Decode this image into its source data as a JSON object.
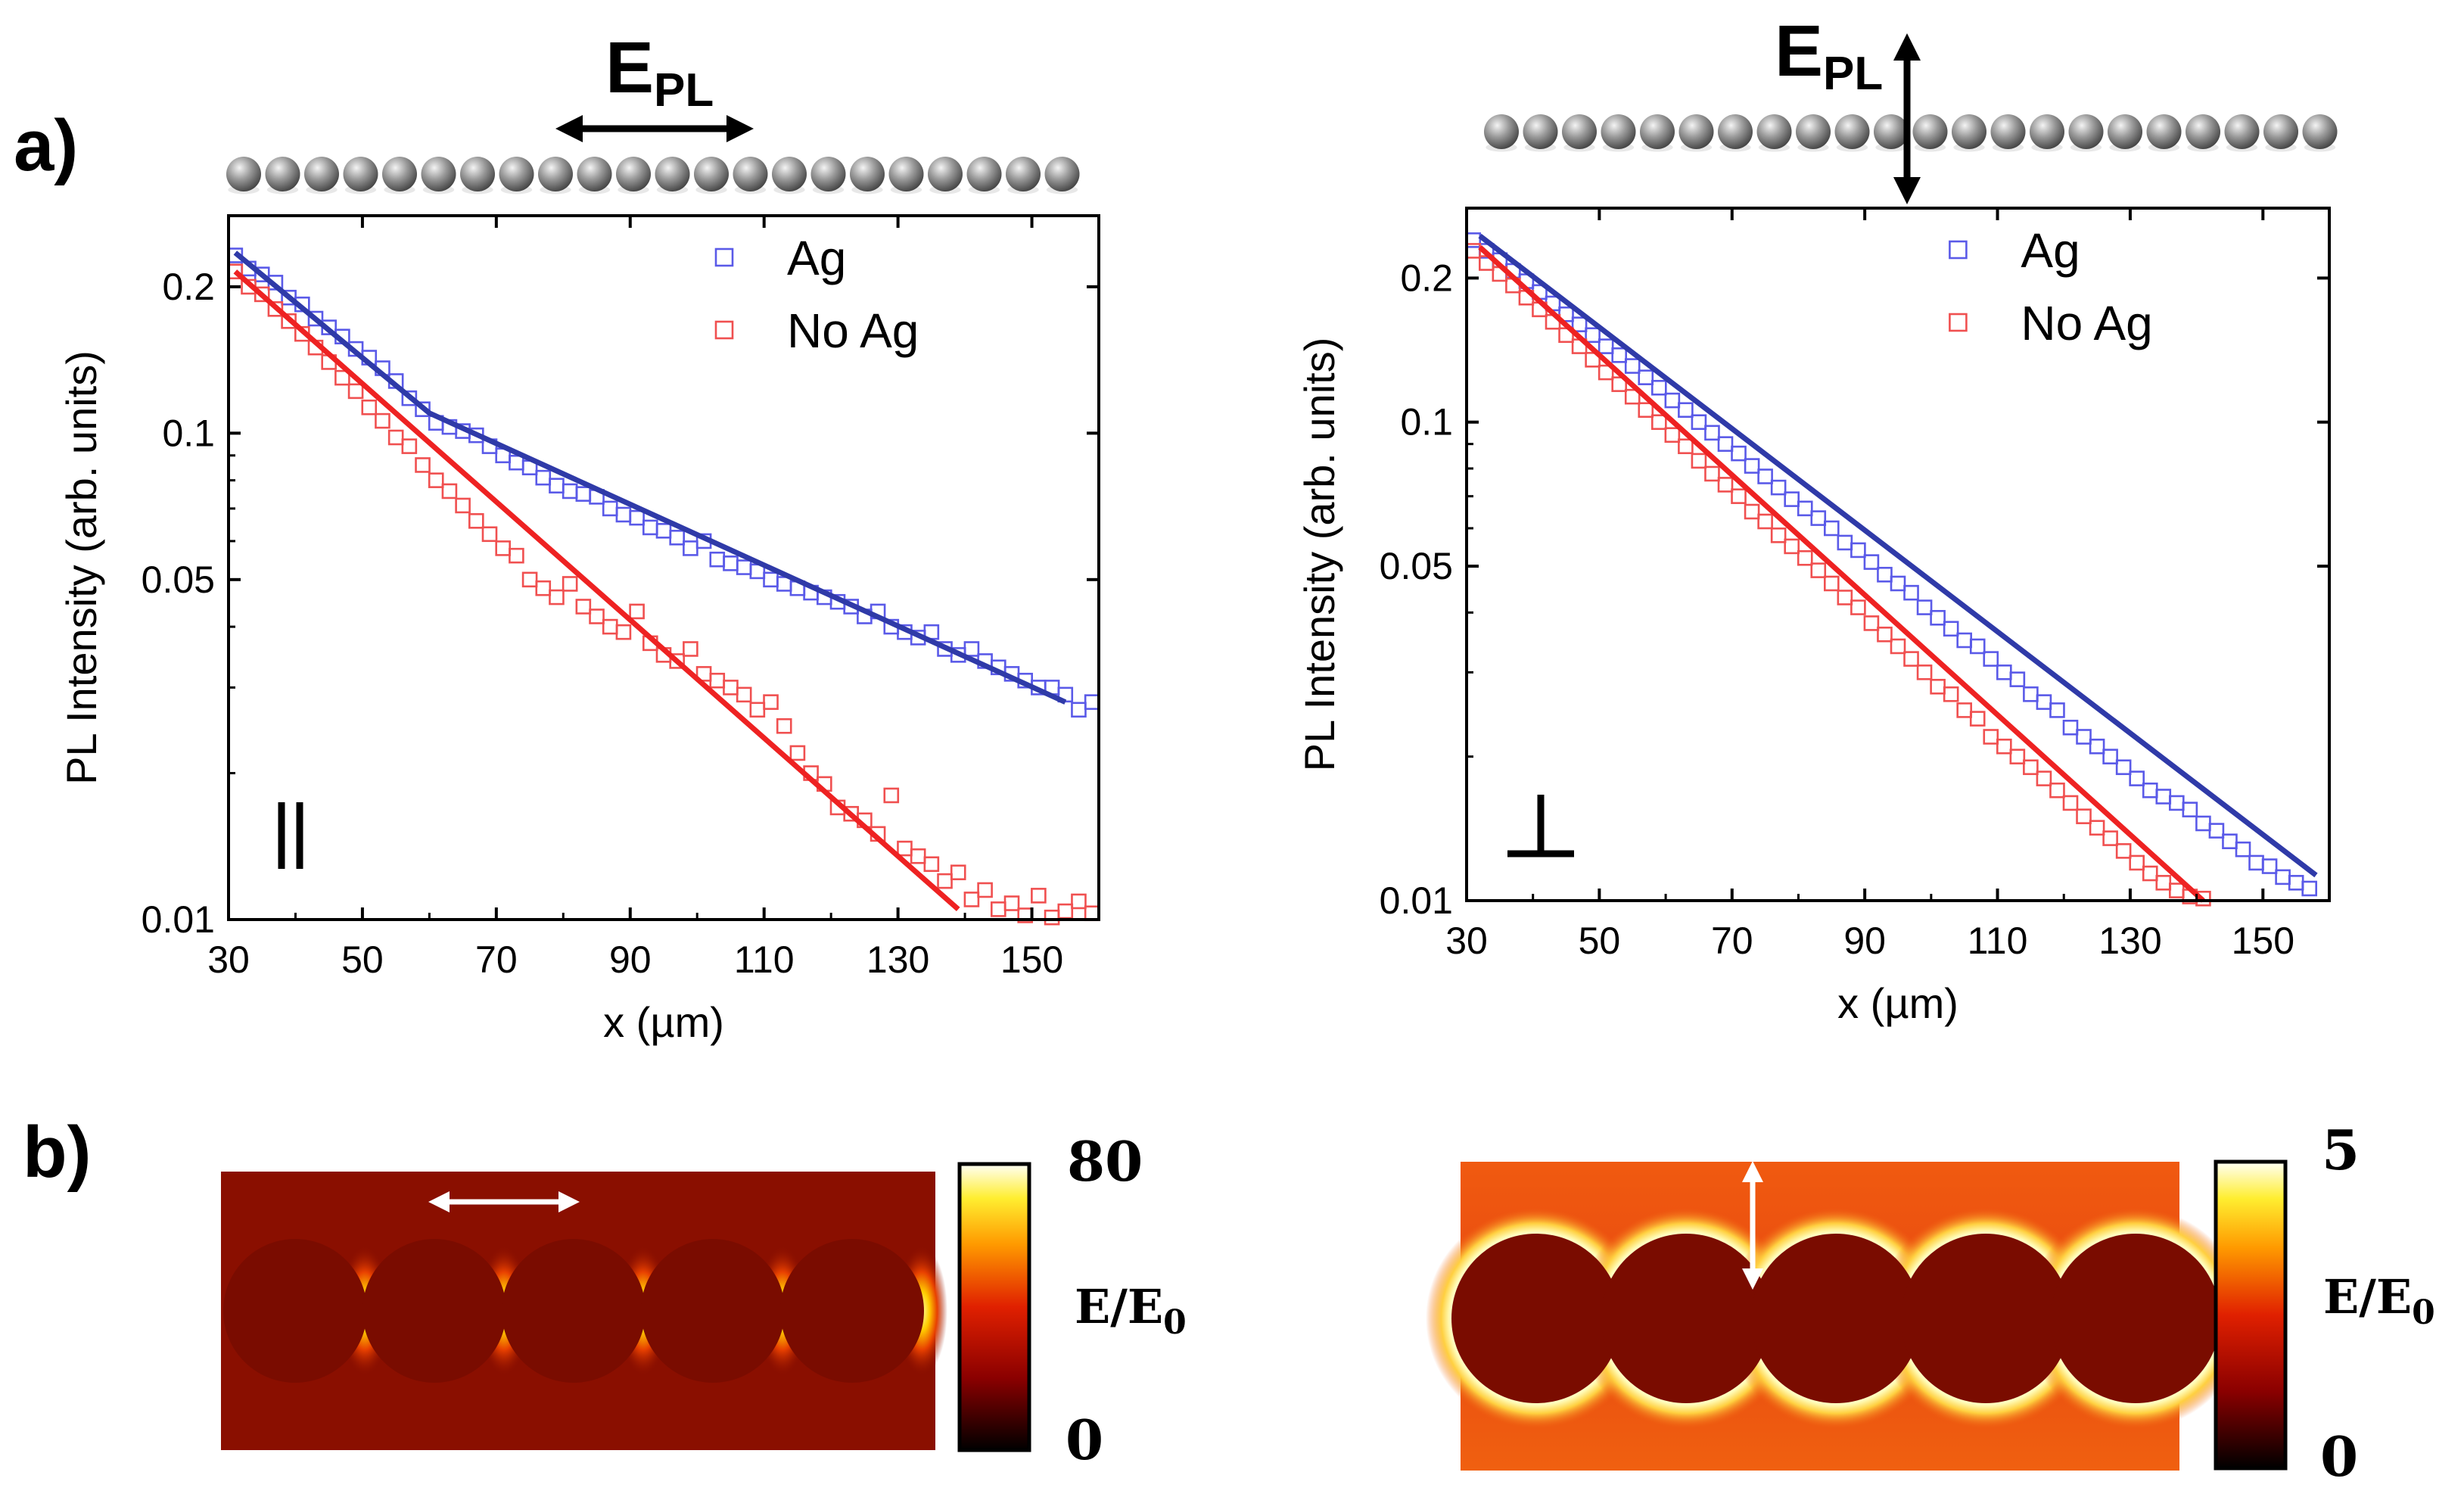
{
  "panel_labels": {
    "a": "a)",
    "b": "b)"
  },
  "polarization_labels": {
    "main": "E",
    "sub": "PL"
  },
  "orientation_symbols": {
    "parallel": "‖",
    "perpendicular": "⊥"
  },
  "colors": {
    "ag": "#2f3aa8",
    "ag_marker": "#5a5ae8",
    "noag": "#ee2222",
    "noag_marker": "#f05050",
    "axis": "#000000"
  },
  "chart_data": [
    {
      "type": "scatter",
      "panel": "parallel",
      "xlabel": "x (µm)",
      "ylabel": "PL Intensity (arb. units)",
      "yscale": "log",
      "xlim": [
        30,
        160
      ],
      "ylim": [
        0.01,
        0.28
      ],
      "xticks": [
        30,
        50,
        70,
        90,
        110,
        130,
        150
      ],
      "yticks": [
        0.01,
        0.05,
        0.1,
        0.2
      ],
      "ytick_labels": [
        "0.01",
        "0.05",
        "0.1",
        "0.2"
      ],
      "legend": [
        "Ag",
        "No Ag"
      ],
      "series": [
        {
          "name": "Ag",
          "x": [
            31,
            33,
            35,
            37,
            39,
            41,
            43,
            45,
            47,
            49,
            51,
            53,
            55,
            57,
            59,
            61,
            63,
            65,
            67,
            69,
            71,
            73,
            75,
            77,
            79,
            81,
            83,
            85,
            87,
            89,
            91,
            93,
            95,
            97,
            99,
            101,
            103,
            105,
            107,
            109,
            111,
            113,
            115,
            117,
            119,
            121,
            123,
            125,
            127,
            129,
            131,
            133,
            135,
            137,
            139,
            141,
            143,
            145,
            147,
            149,
            151,
            153,
            155,
            157,
            159
          ],
          "y": [
            0.232,
            0.218,
            0.212,
            0.204,
            0.19,
            0.184,
            0.172,
            0.165,
            0.158,
            0.149,
            0.143,
            0.136,
            0.128,
            0.118,
            0.112,
            0.105,
            0.103,
            0.101,
            0.099,
            0.094,
            0.09,
            0.087,
            0.085,
            0.081,
            0.078,
            0.076,
            0.075,
            0.074,
            0.07,
            0.068,
            0.067,
            0.064,
            0.063,
            0.061,
            0.058,
            0.06,
            0.055,
            0.054,
            0.053,
            0.052,
            0.05,
            0.049,
            0.048,
            0.047,
            0.046,
            0.045,
            0.044,
            0.042,
            0.043,
            0.04,
            0.039,
            0.038,
            0.039,
            0.036,
            0.035,
            0.036,
            0.034,
            0.033,
            0.032,
            0.031,
            0.03,
            0.03,
            0.029,
            0.027,
            0.028
          ]
        },
        {
          "name": "No Ag",
          "x": [
            31,
            33,
            35,
            37,
            39,
            41,
            43,
            45,
            47,
            49,
            51,
            53,
            55,
            57,
            59,
            61,
            63,
            65,
            67,
            69,
            71,
            73,
            75,
            77,
            79,
            81,
            83,
            85,
            87,
            89,
            91,
            93,
            95,
            97,
            99,
            101,
            103,
            105,
            107,
            109,
            111,
            113,
            115,
            117,
            119,
            121,
            123,
            125,
            127,
            129,
            131,
            133,
            135,
            137,
            139,
            141,
            143,
            145,
            147,
            149,
            151,
            153,
            155,
            157,
            159
          ],
          "y": [
            0.215,
            0.2,
            0.193,
            0.18,
            0.17,
            0.16,
            0.15,
            0.14,
            0.13,
            0.122,
            0.113,
            0.106,
            0.098,
            0.094,
            0.086,
            0.08,
            0.076,
            0.071,
            0.066,
            0.062,
            0.058,
            0.056,
            0.05,
            0.048,
            0.046,
            0.049,
            0.044,
            0.042,
            0.04,
            0.039,
            0.043,
            0.037,
            0.035,
            0.034,
            0.036,
            0.032,
            0.031,
            0.03,
            0.029,
            0.027,
            0.028,
            0.025,
            0.022,
            0.02,
            0.019,
            0.017,
            0.0165,
            0.016,
            0.015,
            0.018,
            0.014,
            0.0135,
            0.013,
            0.012,
            0.0125,
            0.011,
            0.0115,
            0.0105,
            0.0108,
            0.0102,
            0.0112,
            0.0101,
            0.0104,
            0.0109,
            0.0103
          ]
        }
      ],
      "fits": [
        {
          "name": "Ag fit",
          "x": [
            31,
            60,
            155
          ],
          "y": [
            0.235,
            0.11,
            0.028
          ]
        },
        {
          "name": "No Ag fit",
          "x": [
            31,
            139
          ],
          "y": [
            0.215,
            0.0105
          ]
        }
      ]
    },
    {
      "type": "scatter",
      "panel": "perpendicular",
      "xlabel": "x (µm)",
      "ylabel": "PL Intensity (arb. units)",
      "yscale": "log",
      "xlim": [
        30,
        160
      ],
      "ylim": [
        0.01,
        0.28
      ],
      "xticks": [
        30,
        50,
        70,
        90,
        110,
        130,
        150
      ],
      "yticks": [
        0.01,
        0.05,
        0.1,
        0.2
      ],
      "ytick_labels": [
        "0.01",
        "0.05",
        "0.1",
        "0.2"
      ],
      "legend": [
        "Ag",
        "No Ag"
      ],
      "series": [
        {
          "name": "Ag",
          "x": [
            31,
            33,
            35,
            37,
            39,
            41,
            43,
            45,
            47,
            49,
            51,
            53,
            55,
            57,
            59,
            61,
            63,
            65,
            67,
            69,
            71,
            73,
            75,
            77,
            79,
            81,
            83,
            85,
            87,
            89,
            91,
            93,
            95,
            97,
            99,
            101,
            103,
            105,
            107,
            109,
            111,
            113,
            115,
            117,
            119,
            121,
            123,
            125,
            127,
            129,
            131,
            133,
            135,
            137,
            139,
            141,
            143,
            145,
            147,
            149,
            151,
            153,
            155,
            157
          ],
          "y": [
            0.24,
            0.228,
            0.218,
            0.207,
            0.197,
            0.187,
            0.177,
            0.168,
            0.16,
            0.152,
            0.144,
            0.138,
            0.131,
            0.124,
            0.118,
            0.111,
            0.106,
            0.1,
            0.095,
            0.09,
            0.086,
            0.081,
            0.077,
            0.073,
            0.069,
            0.066,
            0.063,
            0.06,
            0.056,
            0.054,
            0.051,
            0.048,
            0.046,
            0.044,
            0.041,
            0.039,
            0.037,
            0.035,
            0.034,
            0.032,
            0.03,
            0.029,
            0.027,
            0.026,
            0.025,
            0.023,
            0.022,
            0.021,
            0.02,
            0.019,
            0.018,
            0.017,
            0.0165,
            0.016,
            0.0155,
            0.0145,
            0.014,
            0.0133,
            0.0128,
            0.012,
            0.0118,
            0.0112,
            0.0109,
            0.0106
          ]
        },
        {
          "name": "No Ag",
          "x": [
            31,
            33,
            35,
            37,
            39,
            41,
            43,
            45,
            47,
            49,
            51,
            53,
            55,
            57,
            59,
            61,
            63,
            65,
            67,
            69,
            71,
            73,
            75,
            77,
            79,
            81,
            83,
            85,
            87,
            89,
            91,
            93,
            95,
            97,
            99,
            101,
            103,
            105,
            107,
            109,
            111,
            113,
            115,
            117,
            119,
            121,
            123,
            125,
            127,
            129,
            131,
            133,
            135,
            137,
            139,
            141
          ],
          "y": [
            0.228,
            0.215,
            0.204,
            0.193,
            0.182,
            0.172,
            0.162,
            0.152,
            0.144,
            0.135,
            0.127,
            0.12,
            0.113,
            0.106,
            0.1,
            0.094,
            0.089,
            0.083,
            0.078,
            0.074,
            0.07,
            0.065,
            0.062,
            0.058,
            0.055,
            0.052,
            0.049,
            0.046,
            0.043,
            0.041,
            0.038,
            0.036,
            0.034,
            0.032,
            0.03,
            0.028,
            0.027,
            0.025,
            0.024,
            0.022,
            0.021,
            0.02,
            0.019,
            0.018,
            0.017,
            0.016,
            0.015,
            0.0142,
            0.0135,
            0.0127,
            0.012,
            0.0114,
            0.0109,
            0.0105,
            0.0102,
            0.0101
          ]
        }
      ],
      "fits": [
        {
          "name": "Ag fit",
          "x": [
            32,
            158
          ],
          "y": [
            0.245,
            0.0113
          ]
        },
        {
          "name": "No Ag fit",
          "x": [
            32,
            141
          ],
          "y": [
            0.232,
            0.01
          ]
        }
      ]
    },
    {
      "type": "heatmap",
      "panel": "parallel",
      "colorbar_label": "E/E",
      "colorbar_label_sub": "0",
      "vmin": 0,
      "vmax": 80,
      "vmin_label": "0",
      "vmax_label": "80"
    },
    {
      "type": "heatmap",
      "panel": "perpendicular",
      "colorbar_label": "E/E",
      "colorbar_label_sub": "0",
      "vmin": 0,
      "vmax": 5,
      "vmin_label": "0",
      "vmax_label": "5"
    }
  ]
}
